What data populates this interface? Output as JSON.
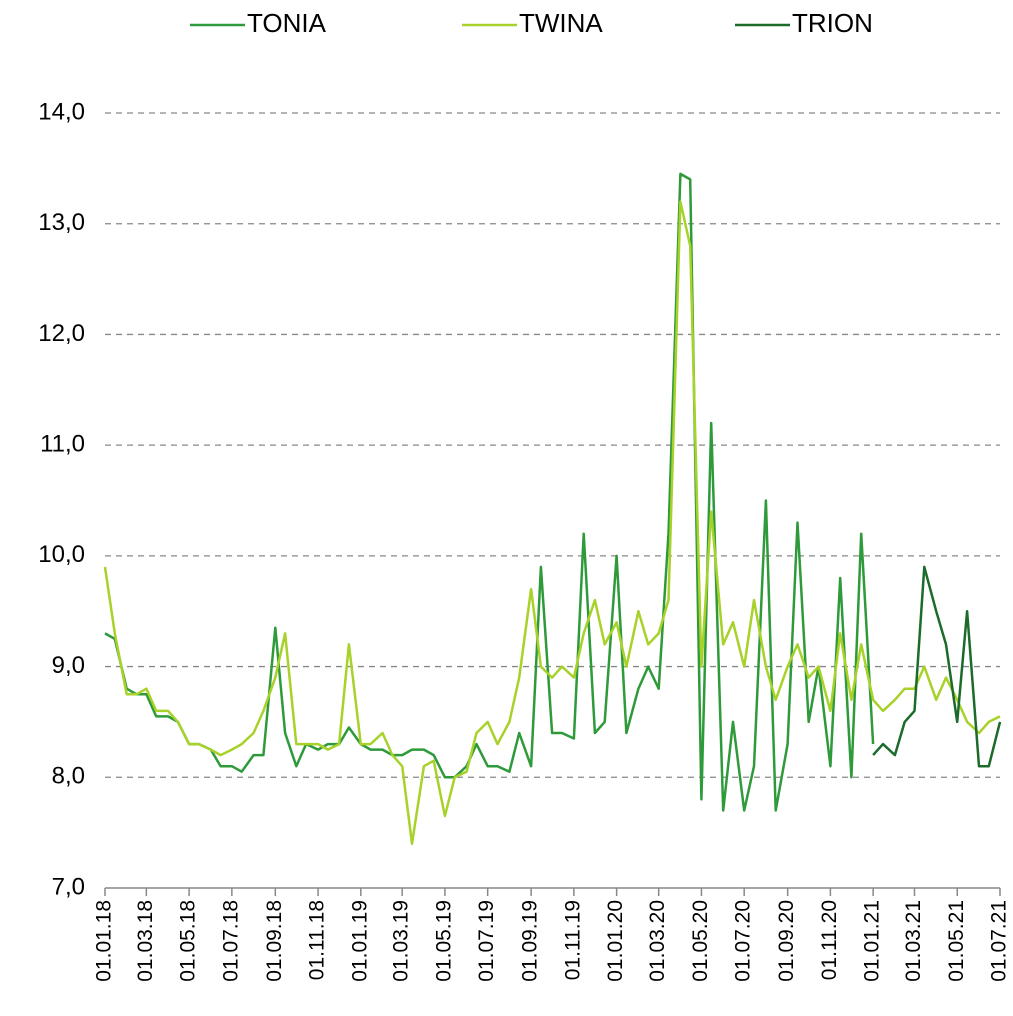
{
  "chart_data": {
    "type": "line",
    "x": [
      "01.01.18",
      "15.01.18",
      "01.02.18",
      "15.02.18",
      "01.03.18",
      "15.03.18",
      "01.04.18",
      "15.04.18",
      "01.05.18",
      "15.05.18",
      "01.06.18",
      "15.06.18",
      "01.07.18",
      "15.07.18",
      "01.08.18",
      "15.08.18",
      "01.09.18",
      "15.09.18",
      "01.10.18",
      "15.10.18",
      "01.11.18",
      "15.11.18",
      "01.12.18",
      "15.12.18",
      "01.01.19",
      "15.01.19",
      "01.02.19",
      "15.02.19",
      "01.03.19",
      "15.03.19",
      "01.04.19",
      "15.04.19",
      "01.05.19",
      "15.05.19",
      "01.06.19",
      "15.06.19",
      "01.07.19",
      "15.07.19",
      "01.08.19",
      "15.08.19",
      "01.09.19",
      "15.09.19",
      "01.10.19",
      "15.10.19",
      "01.11.19",
      "15.11.19",
      "01.12.19",
      "15.12.19",
      "01.01.20",
      "15.01.20",
      "01.02.20",
      "15.02.20",
      "01.03.20",
      "15.03.20",
      "01.04.20",
      "15.04.20",
      "01.05.20",
      "15.05.20",
      "01.06.20",
      "15.06.20",
      "01.07.20",
      "15.07.20",
      "01.08.20",
      "15.08.20",
      "01.09.20",
      "15.09.20",
      "01.10.20",
      "15.10.20",
      "01.11.20",
      "15.11.20",
      "01.12.20",
      "15.12.20",
      "01.01.21",
      "15.01.21",
      "01.02.21",
      "15.02.21",
      "01.03.21",
      "15.03.21",
      "01.04.21",
      "15.04.21",
      "01.05.21",
      "15.05.21",
      "01.06.21",
      "15.06.21",
      "01.07.21"
    ],
    "series": [
      {
        "name": "TONIA",
        "color": "#2e9a3a",
        "values": [
          9.3,
          9.25,
          8.8,
          8.75,
          8.75,
          8.55,
          8.55,
          8.5,
          8.3,
          8.3,
          8.25,
          8.1,
          8.1,
          8.05,
          8.2,
          8.2,
          9.35,
          8.4,
          8.1,
          8.3,
          8.25,
          8.3,
          8.3,
          8.45,
          8.3,
          8.25,
          8.25,
          8.2,
          8.2,
          8.25,
          8.25,
          8.2,
          8.0,
          8.0,
          8.1,
          8.3,
          8.1,
          8.1,
          8.05,
          8.4,
          8.1,
          9.9,
          8.4,
          8.4,
          8.35,
          10.2,
          8.4,
          8.5,
          10.0,
          8.4,
          8.8,
          9.0,
          8.8,
          10.2,
          13.45,
          13.4,
          7.8,
          11.2,
          7.7,
          8.5,
          7.7,
          8.1,
          10.5,
          7.7,
          8.3,
          10.3,
          8.5,
          9.0,
          8.1,
          9.8,
          8.0,
          10.2,
          8.3,
          null,
          null,
          null,
          null,
          null,
          null,
          null,
          null,
          null,
          null,
          null,
          null
        ]
      },
      {
        "name": "TWINA",
        "color": "#a8d12a",
        "values": [
          9.9,
          9.3,
          8.75,
          8.75,
          8.8,
          8.6,
          8.6,
          8.5,
          8.3,
          8.3,
          8.25,
          8.2,
          8.25,
          8.3,
          8.4,
          8.6,
          8.9,
          9.3,
          8.3,
          8.3,
          8.3,
          8.25,
          8.3,
          9.2,
          8.3,
          8.3,
          8.4,
          8.2,
          8.1,
          7.4,
          8.1,
          8.15,
          7.65,
          8.0,
          8.05,
          8.4,
          8.5,
          8.3,
          8.5,
          8.9,
          9.7,
          9.0,
          8.9,
          9.0,
          8.9,
          9.3,
          9.6,
          9.2,
          9.4,
          9.0,
          9.5,
          9.2,
          9.3,
          9.6,
          13.2,
          12.8,
          9.0,
          10.4,
          9.2,
          9.4,
          9.0,
          9.6,
          9.0,
          8.7,
          9.0,
          9.2,
          8.9,
          9.0,
          8.6,
          9.3,
          8.7,
          9.2,
          8.7,
          8.6,
          8.7,
          8.8,
          8.8,
          9.0,
          8.7,
          8.9,
          8.7,
          8.5,
          8.4,
          8.5,
          8.55
        ]
      },
      {
        "name": "TRION",
        "color": "#1c6b2a",
        "values": [
          null,
          null,
          null,
          null,
          null,
          null,
          null,
          null,
          null,
          null,
          null,
          null,
          null,
          null,
          null,
          null,
          null,
          null,
          null,
          null,
          null,
          null,
          null,
          null,
          null,
          null,
          null,
          null,
          null,
          null,
          null,
          null,
          null,
          null,
          null,
          null,
          null,
          null,
          null,
          null,
          null,
          null,
          null,
          null,
          null,
          null,
          null,
          null,
          null,
          null,
          null,
          null,
          null,
          null,
          null,
          null,
          null,
          null,
          null,
          null,
          null,
          null,
          null,
          null,
          null,
          null,
          null,
          null,
          null,
          null,
          null,
          null,
          8.2,
          8.3,
          8.2,
          8.5,
          8.6,
          9.9,
          9.5,
          9.2,
          8.5,
          9.5,
          8.1,
          8.1,
          8.5
        ]
      }
    ],
    "xlim": [
      "01.01.18",
      "01.07.21"
    ],
    "xticks": [
      "01.01.18",
      "01.03.18",
      "01.05.18",
      "01.07.18",
      "01.09.18",
      "01.11.18",
      "01.01.19",
      "01.03.19",
      "01.05.19",
      "01.07.19",
      "01.09.19",
      "01.11.19",
      "01.01.20",
      "01.03.20",
      "01.05.20",
      "01.07.20",
      "01.09.20",
      "01.11.20",
      "01.01.21",
      "01.03.21",
      "01.05.21",
      "01.07.21"
    ],
    "ylim": [
      7,
      14
    ],
    "yticks": [
      {
        "value": 7,
        "label": "7,0"
      },
      {
        "value": 8,
        "label": "8,0"
      },
      {
        "value": 9,
        "label": "9,0"
      },
      {
        "value": 10,
        "label": "10,0"
      },
      {
        "value": 11,
        "label": "11,0"
      },
      {
        "value": 12,
        "label": "12,0"
      },
      {
        "value": 13,
        "label": "13,0"
      },
      {
        "value": 14,
        "label": "14,0"
      }
    ],
    "grid": true,
    "legend": "top"
  }
}
